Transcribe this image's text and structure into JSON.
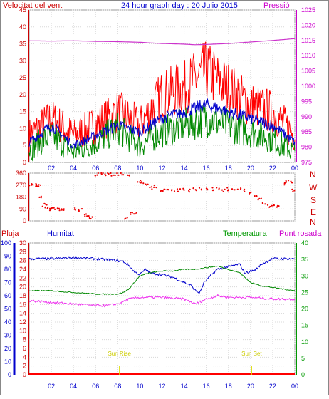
{
  "header": {
    "title": "24 hour graph day : 20 Julio 2015",
    "left_label": "Velocitat del vent",
    "right_label": "Pressió"
  },
  "lower_header": {
    "left_label": "Pluja",
    "humidity_label": "Humitat",
    "temperature_label": "Temperatura",
    "dewpoint_label": "Punt rosada"
  },
  "compass_letters": [
    "N",
    "W",
    "S",
    "E",
    "N"
  ],
  "sun_markers": {
    "rise_label": "Sun Rise",
    "rise_hour": 8.15,
    "set_label": "Sun Set",
    "set_hour": 20.1
  },
  "colors": {
    "frame": "#888888",
    "axis_left": "#cc0000",
    "axis_pressure": "#cc00cc",
    "axis_humidity": "#0000cc",
    "axis_temperature": "#009900",
    "title": "#0000cc",
    "gust": "#ff0000",
    "wind_avg": "#008800",
    "wind_mid": "#0000cc",
    "direction": "#ee0000",
    "pressure": "#cc33cc",
    "humidity": "#0000cc",
    "temperature": "#008800",
    "dewpoint": "#ee33ee",
    "rain": "#ff0000",
    "sun": "#dddd00"
  },
  "chart_data": [
    {
      "type": "line",
      "name": "wind_pressure",
      "x_ticks": [
        "02",
        "04",
        "06",
        "08",
        "10",
        "12",
        "14",
        "16",
        "18",
        "20",
        "22",
        "00"
      ],
      "x_range": [
        0,
        24
      ],
      "y_left_ticks": [
        "0",
        "5",
        "10",
        "15",
        "20",
        "25",
        "30",
        "35",
        "40",
        "45"
      ],
      "y_left_range": [
        0,
        45
      ],
      "y_right_ticks": [
        "975",
        "980",
        "985",
        "990",
        "995",
        "1000",
        "1005",
        "1010",
        "1015",
        "1020",
        "1025"
      ],
      "y_right_range": [
        975,
        1025
      ],
      "gust_profile": {
        "hours": [
          0,
          2,
          4,
          6,
          8,
          10,
          12,
          14,
          16,
          18,
          20,
          22,
          24
        ],
        "values": [
          8,
          13,
          8,
          11,
          15,
          11,
          20,
          22,
          27,
          22,
          17,
          15,
          8
        ]
      },
      "avg_profile": {
        "hours": [
          0,
          2,
          4,
          6,
          8,
          10,
          12,
          14,
          16,
          18,
          20,
          22,
          24
        ],
        "values": [
          4,
          8,
          3,
          6,
          10,
          5,
          9,
          11,
          13,
          11,
          9,
          7,
          3
        ]
      },
      "mid_profile": {
        "hours": [
          0,
          2,
          4,
          6,
          8,
          10,
          12,
          14,
          16,
          18,
          20,
          22,
          24
        ],
        "values": [
          6,
          11,
          5,
          8,
          11,
          9,
          13,
          15,
          17,
          15,
          13,
          11,
          6
        ]
      },
      "pressure": {
        "hours": [
          0,
          2,
          4,
          6,
          8,
          10,
          12,
          14,
          15,
          16,
          18,
          20,
          22,
          24
        ],
        "values": [
          1014.9,
          1014.8,
          1014.9,
          1014.7,
          1014.6,
          1014.4,
          1014.0,
          1013.8,
          1013.6,
          1013.7,
          1014.0,
          1014.5,
          1015.0,
          1015.6
        ]
      }
    },
    {
      "type": "scatter",
      "name": "wind_direction",
      "y_ticks": [
        "0",
        "90",
        "180",
        "270",
        "360"
      ],
      "y_range": [
        0,
        360
      ],
      "points": [
        [
          0.1,
          270
        ],
        [
          0.3,
          270
        ],
        [
          0.5,
          270
        ],
        [
          0.7,
          270
        ],
        [
          0.9,
          270
        ],
        [
          1.1,
          180
        ],
        [
          1.3,
          120
        ],
        [
          1.5,
          110
        ],
        [
          1.7,
          100
        ],
        [
          1.9,
          90
        ],
        [
          2.2,
          90
        ],
        [
          2.5,
          90
        ],
        [
          2.8,
          90
        ],
        [
          3.0,
          90
        ],
        [
          4.2,
          90
        ],
        [
          4.6,
          80
        ],
        [
          5.0,
          45
        ],
        [
          5.3,
          30
        ],
        [
          5.6,
          20
        ],
        [
          6.0,
          350
        ],
        [
          6.4,
          355
        ],
        [
          6.8,
          350
        ],
        [
          7.2,
          355
        ],
        [
          7.6,
          350
        ],
        [
          8.0,
          355
        ],
        [
          8.4,
          355
        ],
        [
          8.8,
          20
        ],
        [
          9.0,
          350
        ],
        [
          9.3,
          60
        ],
        [
          9.6,
          60
        ],
        [
          9.9,
          300
        ],
        [
          10.2,
          290
        ],
        [
          10.6,
          280
        ],
        [
          11.0,
          250
        ],
        [
          11.4,
          260
        ],
        [
          11.8,
          220
        ],
        [
          12.2,
          230
        ],
        [
          12.6,
          240
        ],
        [
          13.0,
          230
        ],
        [
          13.5,
          230
        ],
        [
          14.0,
          240
        ],
        [
          14.5,
          230
        ],
        [
          15.0,
          240
        ],
        [
          15.5,
          240
        ],
        [
          16.0,
          240
        ],
        [
          16.5,
          240
        ],
        [
          17.0,
          240
        ],
        [
          17.5,
          230
        ],
        [
          18.0,
          240
        ],
        [
          18.5,
          240
        ],
        [
          19.0,
          240
        ],
        [
          19.5,
          230
        ],
        [
          20.0,
          210
        ],
        [
          20.4,
          190
        ],
        [
          20.8,
          160
        ],
        [
          21.2,
          130
        ],
        [
          21.6,
          110
        ],
        [
          22.0,
          115
        ],
        [
          22.5,
          110
        ],
        [
          23.0,
          280
        ],
        [
          23.3,
          300
        ],
        [
          23.6,
          290
        ],
        [
          23.9,
          230
        ]
      ]
    },
    {
      "type": "line",
      "name": "hum_temp_rain",
      "x_ticks": [
        "02",
        "04",
        "06",
        "08",
        "10",
        "12",
        "14",
        "16",
        "18",
        "20",
        "22",
        "00"
      ],
      "x_range": [
        0,
        24
      ],
      "y_humidity_ticks": [
        "0",
        "10",
        "20",
        "30",
        "40",
        "50",
        "60",
        "70",
        "80",
        "90",
        "100"
      ],
      "y_humidity_range": [
        0,
        100
      ],
      "y_rain_ticks": [
        "0",
        "2",
        "4",
        "6",
        "8",
        "10",
        "12",
        "14",
        "16",
        "18",
        "20",
        "22",
        "24",
        "26",
        "28",
        "30"
      ],
      "y_rain_range": [
        0,
        30
      ],
      "y_temp_ticks": [
        "0",
        "5",
        "10",
        "15",
        "20",
        "25",
        "30",
        "35",
        "40"
      ],
      "y_temp_range": [
        0,
        40
      ],
      "humidity": {
        "hours": [
          0,
          2,
          4,
          6,
          7.5,
          8.5,
          9.0,
          9.5,
          10.0,
          10.5,
          11,
          12,
          13,
          14,
          14.6,
          15.0,
          15.4,
          15.8,
          16.5,
          17,
          18,
          19,
          19.5,
          20.5,
          21,
          22,
          24
        ],
        "values": [
          88,
          88,
          89,
          88,
          87,
          86,
          83,
          78,
          76,
          80,
          77,
          76,
          74,
          70,
          68,
          64,
          62,
          70,
          76,
          80,
          82,
          84,
          77,
          80,
          84,
          88,
          88
        ]
      },
      "temperature": {
        "hours": [
          0,
          2,
          4,
          6,
          8,
          8.5,
          9.0,
          9.5,
          10.0,
          11,
          12,
          13,
          14,
          15,
          16,
          17,
          18,
          19,
          20,
          21,
          22,
          23,
          24
        ],
        "values": [
          25.5,
          25.5,
          25,
          24.5,
          24.5,
          25,
          26,
          28,
          30,
          31,
          31.5,
          31.5,
          32,
          32,
          32.5,
          33,
          32,
          31,
          28,
          27,
          26.5,
          26,
          25.5
        ]
      },
      "dewpoint": {
        "hours": [
          0,
          2,
          4,
          6,
          7,
          8,
          9,
          10,
          12,
          14,
          15,
          16,
          17,
          18,
          20,
          22,
          24
        ],
        "values": [
          22.5,
          22,
          21.5,
          21,
          21,
          21.5,
          23,
          23.5,
          23.5,
          23,
          21.5,
          23,
          24,
          23.5,
          23.5,
          23,
          23
        ]
      },
      "rain": {
        "hours": [
          0,
          24
        ],
        "values": [
          0,
          0
        ]
      }
    }
  ]
}
